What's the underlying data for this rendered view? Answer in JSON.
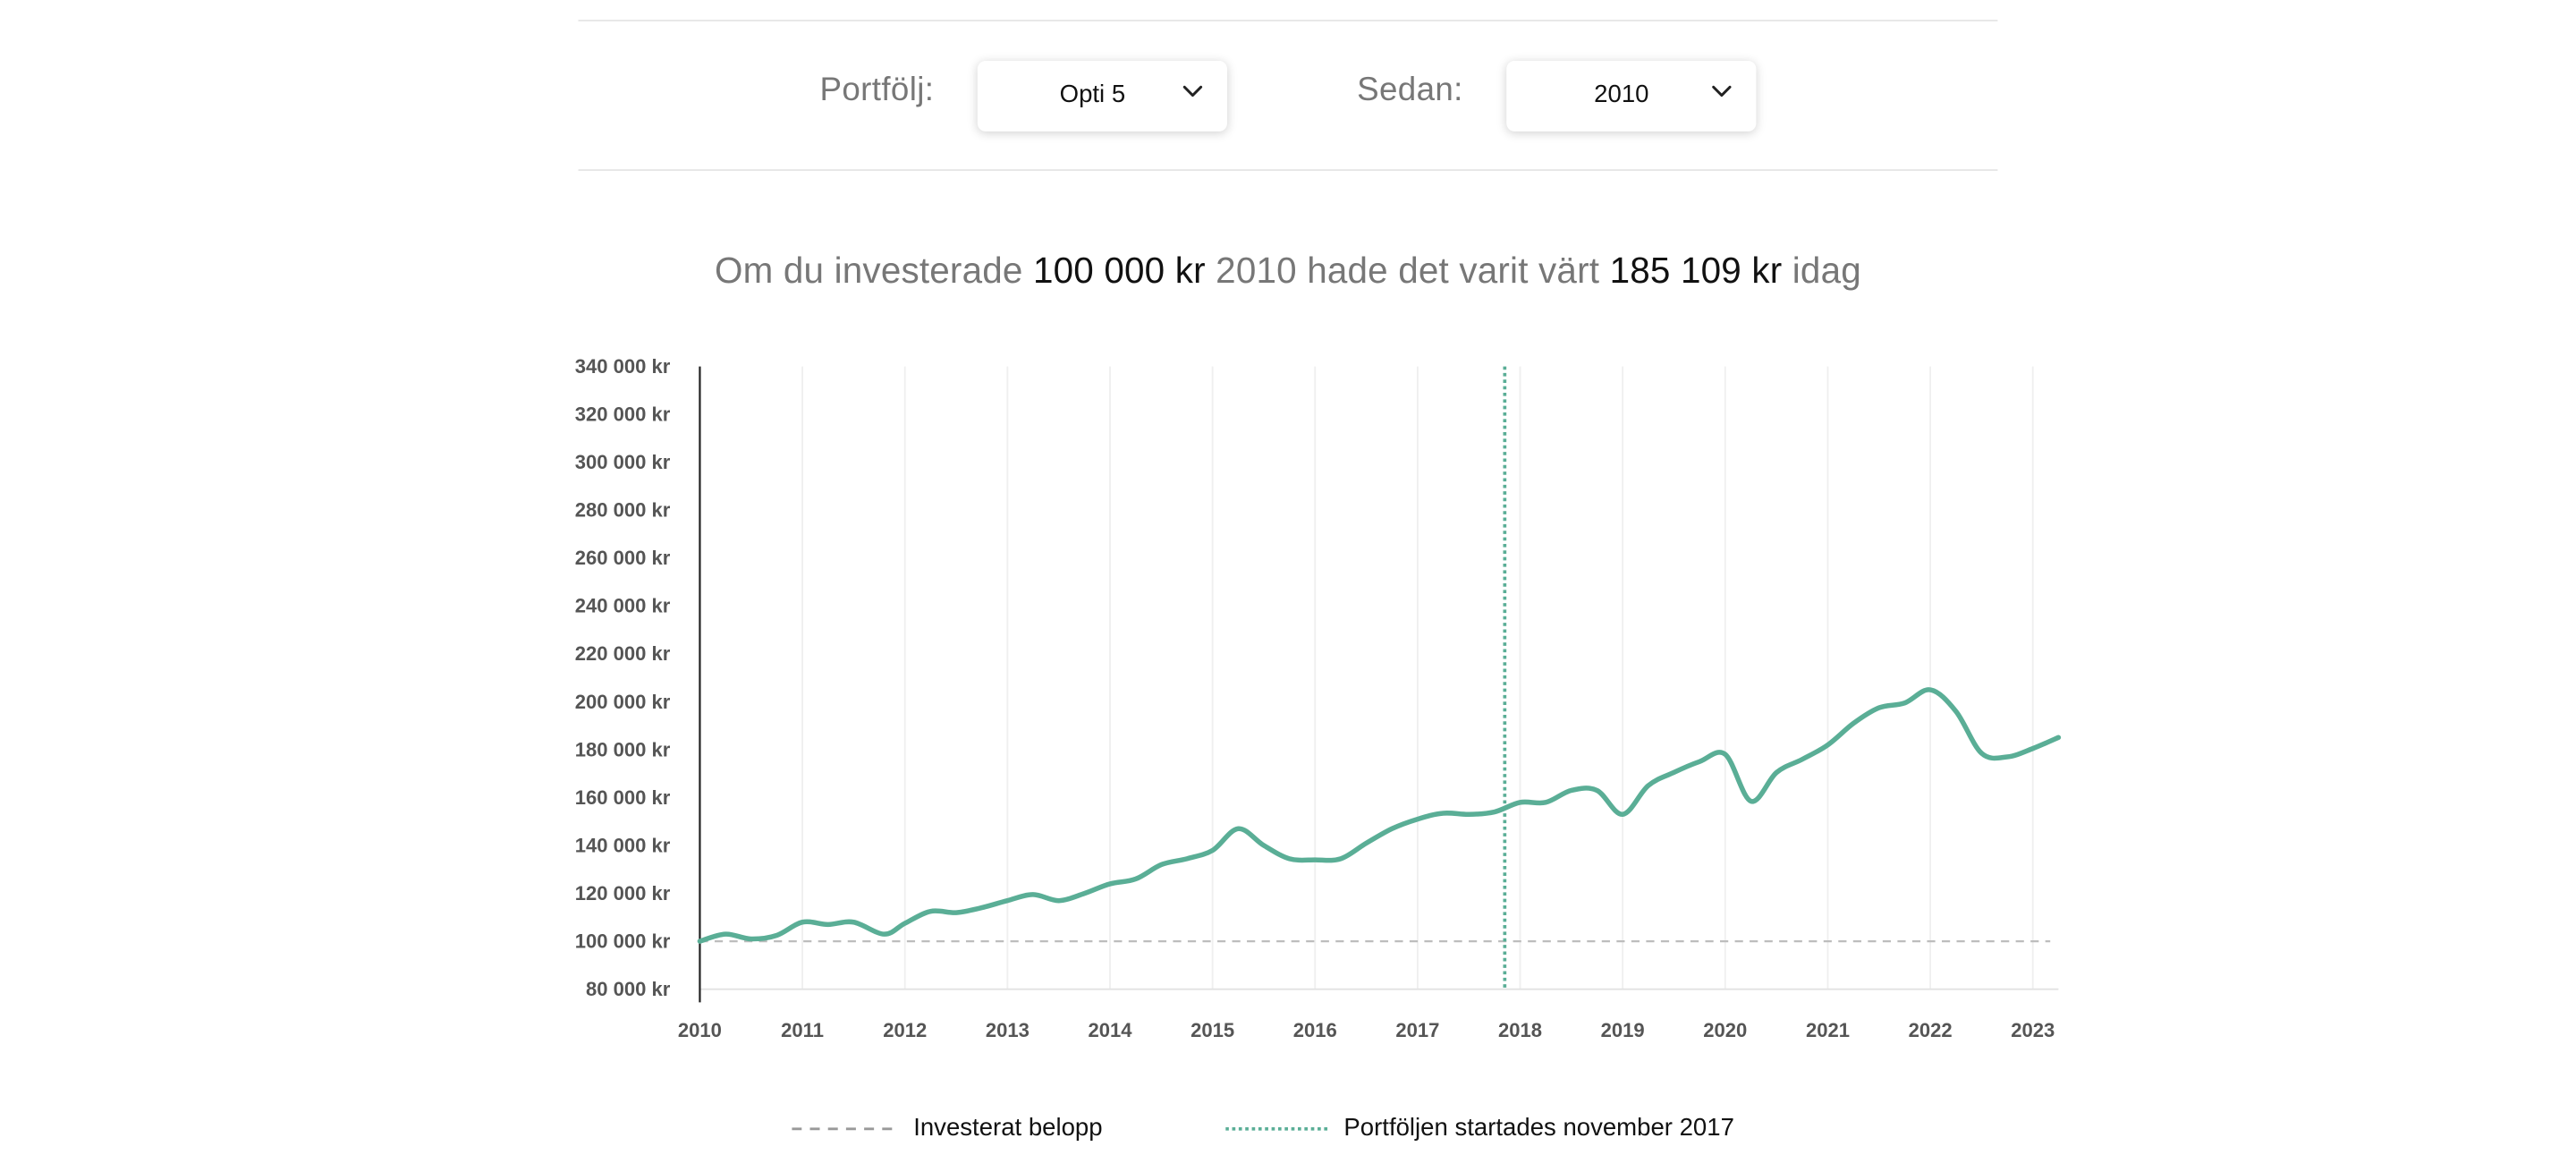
{
  "selectors": {
    "portfolio": {
      "label": "Portfölj:",
      "value": "Opti 5"
    },
    "since": {
      "label": "Sedan:",
      "value": "2010"
    }
  },
  "headline": {
    "part1": "Om du investerade ",
    "amount": "100 000 kr",
    "part2": " 2010 hade det varit värt ",
    "result": "185 109 kr",
    "part3": " idag"
  },
  "legend": {
    "invested": "Investerat belopp",
    "started": "Portföljen startades november 2017"
  },
  "colors": {
    "series": "#5aae96",
    "invested_line": "#bdbdbd",
    "grid": "#efefef"
  },
  "chart_data": {
    "type": "line",
    "ylim": [
      80000,
      340000
    ],
    "xlim": [
      2010,
      2023.25
    ],
    "yticks": [
      "80 000 kr",
      "100 000 kr",
      "120 000 kr",
      "140 000 kr",
      "160 000 kr",
      "180 000 kr",
      "200 000 kr",
      "220 000 kr",
      "240 000 kr",
      "260 000 kr",
      "280 000 kr",
      "300 000 kr",
      "320 000 kr",
      "340 000 kr"
    ],
    "ytick_values": [
      80000,
      100000,
      120000,
      140000,
      160000,
      180000,
      200000,
      220000,
      240000,
      260000,
      280000,
      300000,
      320000,
      340000
    ],
    "xticks": [
      "2010",
      "2011",
      "2012",
      "2013",
      "2014",
      "2015",
      "2016",
      "2017",
      "2018",
      "2019",
      "2020",
      "2021",
      "2022",
      "2023"
    ],
    "xtick_values": [
      2010,
      2011,
      2012,
      2013,
      2014,
      2015,
      2016,
      2017,
      2018,
      2019,
      2020,
      2021,
      2022,
      2023
    ],
    "grid": "vertical",
    "invested_amount": 100000,
    "portfolio_start": 2017.85,
    "series": [
      {
        "x": [
          2010.0,
          2010.25,
          2010.5,
          2010.75,
          2011.0,
          2011.25,
          2011.5,
          2011.8,
          2012.0,
          2012.25,
          2012.5,
          2012.75,
          2013.0,
          2013.25,
          2013.5,
          2013.75,
          2014.0,
          2014.25,
          2014.5,
          2014.75,
          2015.0,
          2015.25,
          2015.5,
          2015.75,
          2016.0,
          2016.25,
          2016.5,
          2016.75,
          2017.0,
          2017.25,
          2017.5,
          2017.75,
          2018.0,
          2018.25,
          2018.5,
          2018.75,
          2019.0,
          2019.25,
          2019.5,
          2019.75,
          2020.0,
          2020.25,
          2020.5,
          2020.75,
          2021.0,
          2021.25,
          2021.5,
          2021.75,
          2022.0,
          2022.25,
          2022.5,
          2022.75,
          2023.0,
          2023.25
        ],
        "y": [
          100000,
          103000,
          101000,
          102500,
          108000,
          107000,
          108000,
          103000,
          107500,
          112500,
          112000,
          114000,
          117000,
          119500,
          117000,
          120000,
          124000,
          126000,
          132000,
          134500,
          138000,
          147000,
          140000,
          134500,
          134000,
          134500,
          141000,
          147000,
          151000,
          153500,
          153000,
          154000,
          158000,
          158000,
          163000,
          163000,
          153000,
          165000,
          170500,
          175000,
          178000,
          158500,
          170500,
          176000,
          182000,
          191000,
          197500,
          199500,
          205000,
          196000,
          178500,
          177000,
          180500,
          185109
        ]
      }
    ]
  }
}
